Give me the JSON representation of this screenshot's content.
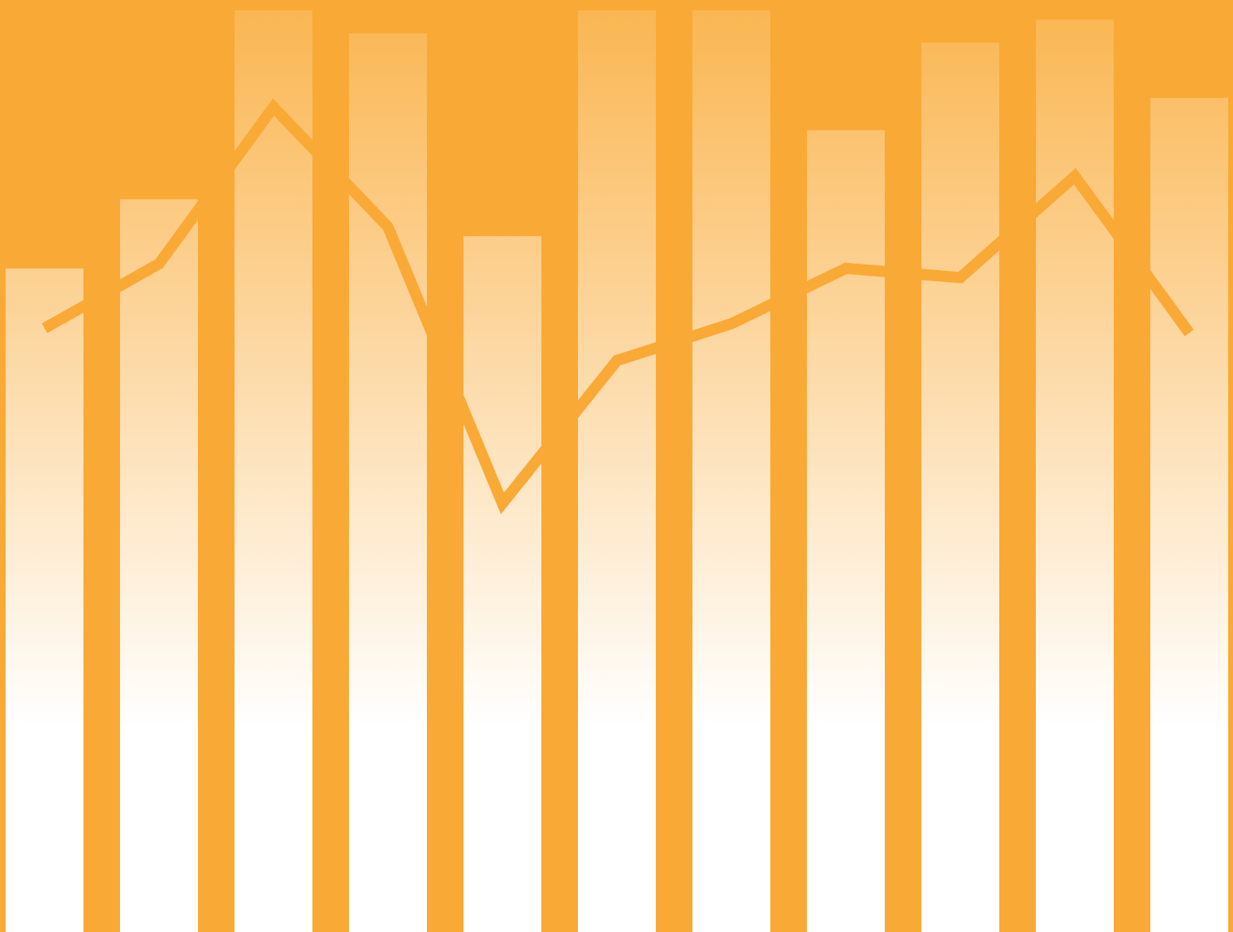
{
  "chart_data": {
    "type": "bar",
    "title": "",
    "xlabel": "",
    "ylabel": "",
    "ylim": [
      0,
      100
    ],
    "grid": false,
    "legend": "none",
    "colors": {
      "background": "#f9a935",
      "bar_gradient_top": "#fab550",
      "bar_gradient_bottom": "#ffffff",
      "line": "#f9a935"
    },
    "series": [
      {
        "type": "bar",
        "values": [
          72,
          79.5,
          100,
          97.5,
          75.5,
          100,
          100,
          87,
          96.5,
          99,
          90.5
        ]
      },
      {
        "type": "line",
        "values": [
          65.5,
          72.5,
          89.5,
          76.5,
          46.5,
          62,
          66,
          72,
          71,
          82,
          65
        ]
      }
    ]
  }
}
